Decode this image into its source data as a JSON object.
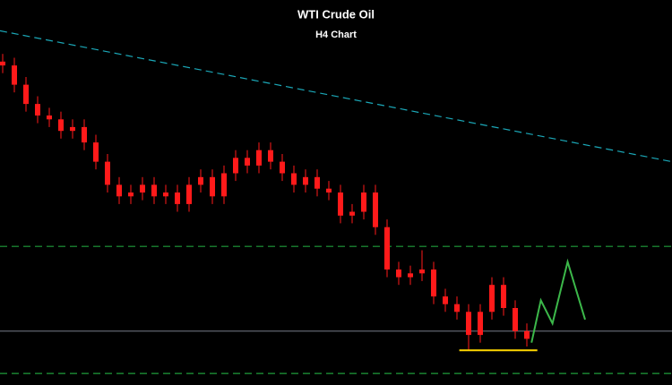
{
  "chart_data": {
    "type": "candlestick",
    "title": "WTI Crude Oil",
    "subtitle": "H4 Chart",
    "x": [
      0,
      1,
      2,
      3,
      4,
      5,
      6,
      7,
      8,
      9,
      10,
      11,
      12,
      13,
      14,
      15,
      16,
      17,
      18,
      19,
      20,
      21,
      22,
      23,
      24,
      25,
      26,
      27,
      28,
      29,
      30,
      31,
      32,
      33,
      34,
      35,
      36,
      37,
      38,
      39,
      40,
      41,
      42,
      43,
      44,
      45
    ],
    "open": [
      84,
      83,
      78,
      73,
      70,
      69,
      66,
      67,
      63,
      58,
      52,
      49,
      50,
      52,
      49,
      50,
      47,
      52,
      54,
      49,
      55,
      59,
      57,
      61,
      58,
      55,
      52,
      54,
      51,
      50,
      44,
      45,
      50,
      41,
      30,
      28,
      29,
      30,
      23,
      21,
      19,
      13,
      19,
      26,
      20,
      14
    ],
    "high": [
      86,
      85,
      80,
      75,
      72,
      71,
      69,
      69,
      65,
      60,
      54,
      52,
      54,
      54,
      52,
      52,
      54,
      56,
      56,
      57,
      61,
      61,
      63,
      63,
      60,
      57,
      56,
      56,
      53,
      52,
      47,
      52,
      52,
      43,
      32,
      31,
      35,
      32,
      25,
      23,
      21,
      21,
      28,
      28,
      22,
      16
    ],
    "low": [
      81,
      76,
      71,
      68,
      67,
      64,
      64,
      61,
      56,
      50,
      47,
      47,
      48,
      47,
      47,
      45,
      45,
      50,
      47,
      47,
      53,
      55,
      55,
      56,
      53,
      50,
      50,
      49,
      48,
      42,
      42,
      43,
      39,
      28,
      26,
      26,
      27,
      21,
      19,
      17,
      9,
      11,
      17,
      18,
      12,
      10
    ],
    "close": [
      83,
      78,
      73,
      70,
      69,
      66,
      67,
      63,
      58,
      52,
      49,
      50,
      52,
      49,
      50,
      47,
      52,
      54,
      49,
      55,
      59,
      57,
      61,
      58,
      55,
      52,
      54,
      51,
      50,
      44,
      45,
      50,
      41,
      30,
      28,
      29,
      30,
      23,
      21,
      19,
      13,
      19,
      26,
      20,
      14,
      12
    ],
    "color": "#ff1a1a",
    "xlim": [
      -0.23,
      57.46
    ],
    "ylim": [
      0,
      100
    ],
    "trendline": {
      "x": [
        -0.23,
        57.46
      ],
      "values": [
        92,
        58
      ],
      "color": "#1ba8b8"
    },
    "levels": [
      {
        "value": 36,
        "color": "#1f9e3a",
        "style": "dashed"
      },
      {
        "value": 3,
        "color": "#1f9e3a",
        "style": "dashed"
      },
      {
        "value": 14,
        "color": "#6b6f7a",
        "style": "solid"
      }
    ],
    "support": {
      "x": [
        39.2,
        45.9
      ],
      "value": 9,
      "color": "#ffd700"
    },
    "projection": {
      "x": [
        45.4,
        46.2,
        47.2,
        48.5,
        50
      ],
      "values": [
        11,
        22,
        16,
        32,
        17
      ],
      "color": "#3cb84a"
    }
  }
}
